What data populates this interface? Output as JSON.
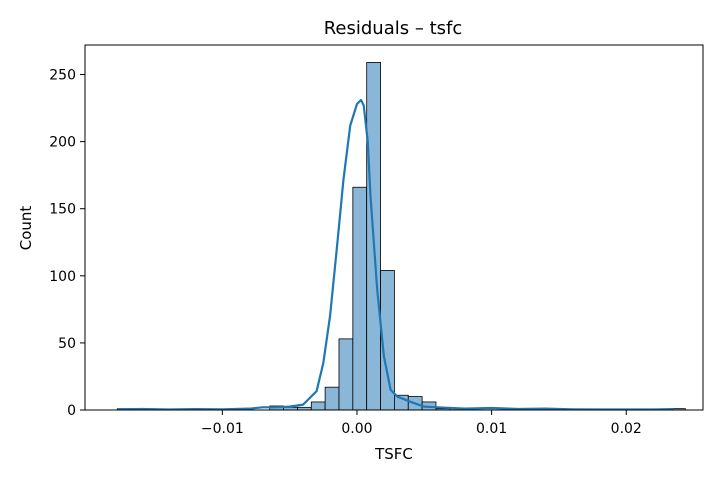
{
  "chart_data": {
    "type": "bar",
    "title": "Residuals – tsfc",
    "xlabel": "TSFC",
    "ylabel": "Count",
    "xlim": [
      -0.0202,
      0.0257
    ],
    "ylim": [
      0,
      272
    ],
    "grid": false,
    "legend": "none",
    "x_ticks": [
      -0.01,
      0.0,
      0.01,
      0.02
    ],
    "x_tick_labels": [
      "−0.01",
      "0.00",
      "0.01",
      "0.02"
    ],
    "y_ticks": [
      0,
      50,
      100,
      150,
      200,
      250
    ],
    "y_tick_labels": [
      "0",
      "50",
      "100",
      "150",
      "200",
      "250"
    ],
    "bin_start": -0.0178,
    "bin_width": 0.001029,
    "values": [
      1,
      0,
      0,
      0,
      0,
      0,
      0,
      0,
      0,
      0,
      0,
      3,
      2,
      2,
      6,
      17,
      53,
      166,
      259,
      104,
      11,
      10,
      6,
      1,
      1,
      0,
      0,
      0,
      0,
      0,
      0,
      0,
      0,
      0,
      0,
      0,
      0,
      0,
      0,
      0,
      1
    ],
    "kde": {
      "name": "KDE",
      "x": [
        -0.0178,
        -0.016,
        -0.014,
        -0.012,
        -0.01,
        -0.008,
        -0.007,
        -0.006,
        -0.005,
        -0.004,
        -0.003,
        -0.0025,
        -0.002,
        -0.0015,
        -0.001,
        -0.0005,
        0.0,
        0.0003,
        0.0005,
        0.0008,
        0.001,
        0.0015,
        0.002,
        0.0025,
        0.003,
        0.004,
        0.005,
        0.006,
        0.008,
        0.01,
        0.012,
        0.014,
        0.016,
        0.018,
        0.02,
        0.022,
        0.0235
      ],
      "y": [
        0.5,
        0.8,
        0.4,
        0.7,
        0.5,
        1.0,
        2.0,
        2.0,
        2.5,
        4.0,
        14.0,
        35.0,
        70.0,
        120.0,
        172.0,
        212.0,
        228.0,
        231.0,
        227.0,
        200.0,
        160.0,
        90.0,
        40.0,
        15.0,
        10.0,
        6.0,
        2.5,
        2.0,
        1.0,
        1.5,
        0.8,
        1.0,
        0.5,
        0.4,
        0.4,
        0.4,
        0.7
      ]
    },
    "colors": {
      "bar_fill": "#8ab7d7",
      "bar_edge": "#000000",
      "kde_line": "#1f77b4"
    }
  }
}
